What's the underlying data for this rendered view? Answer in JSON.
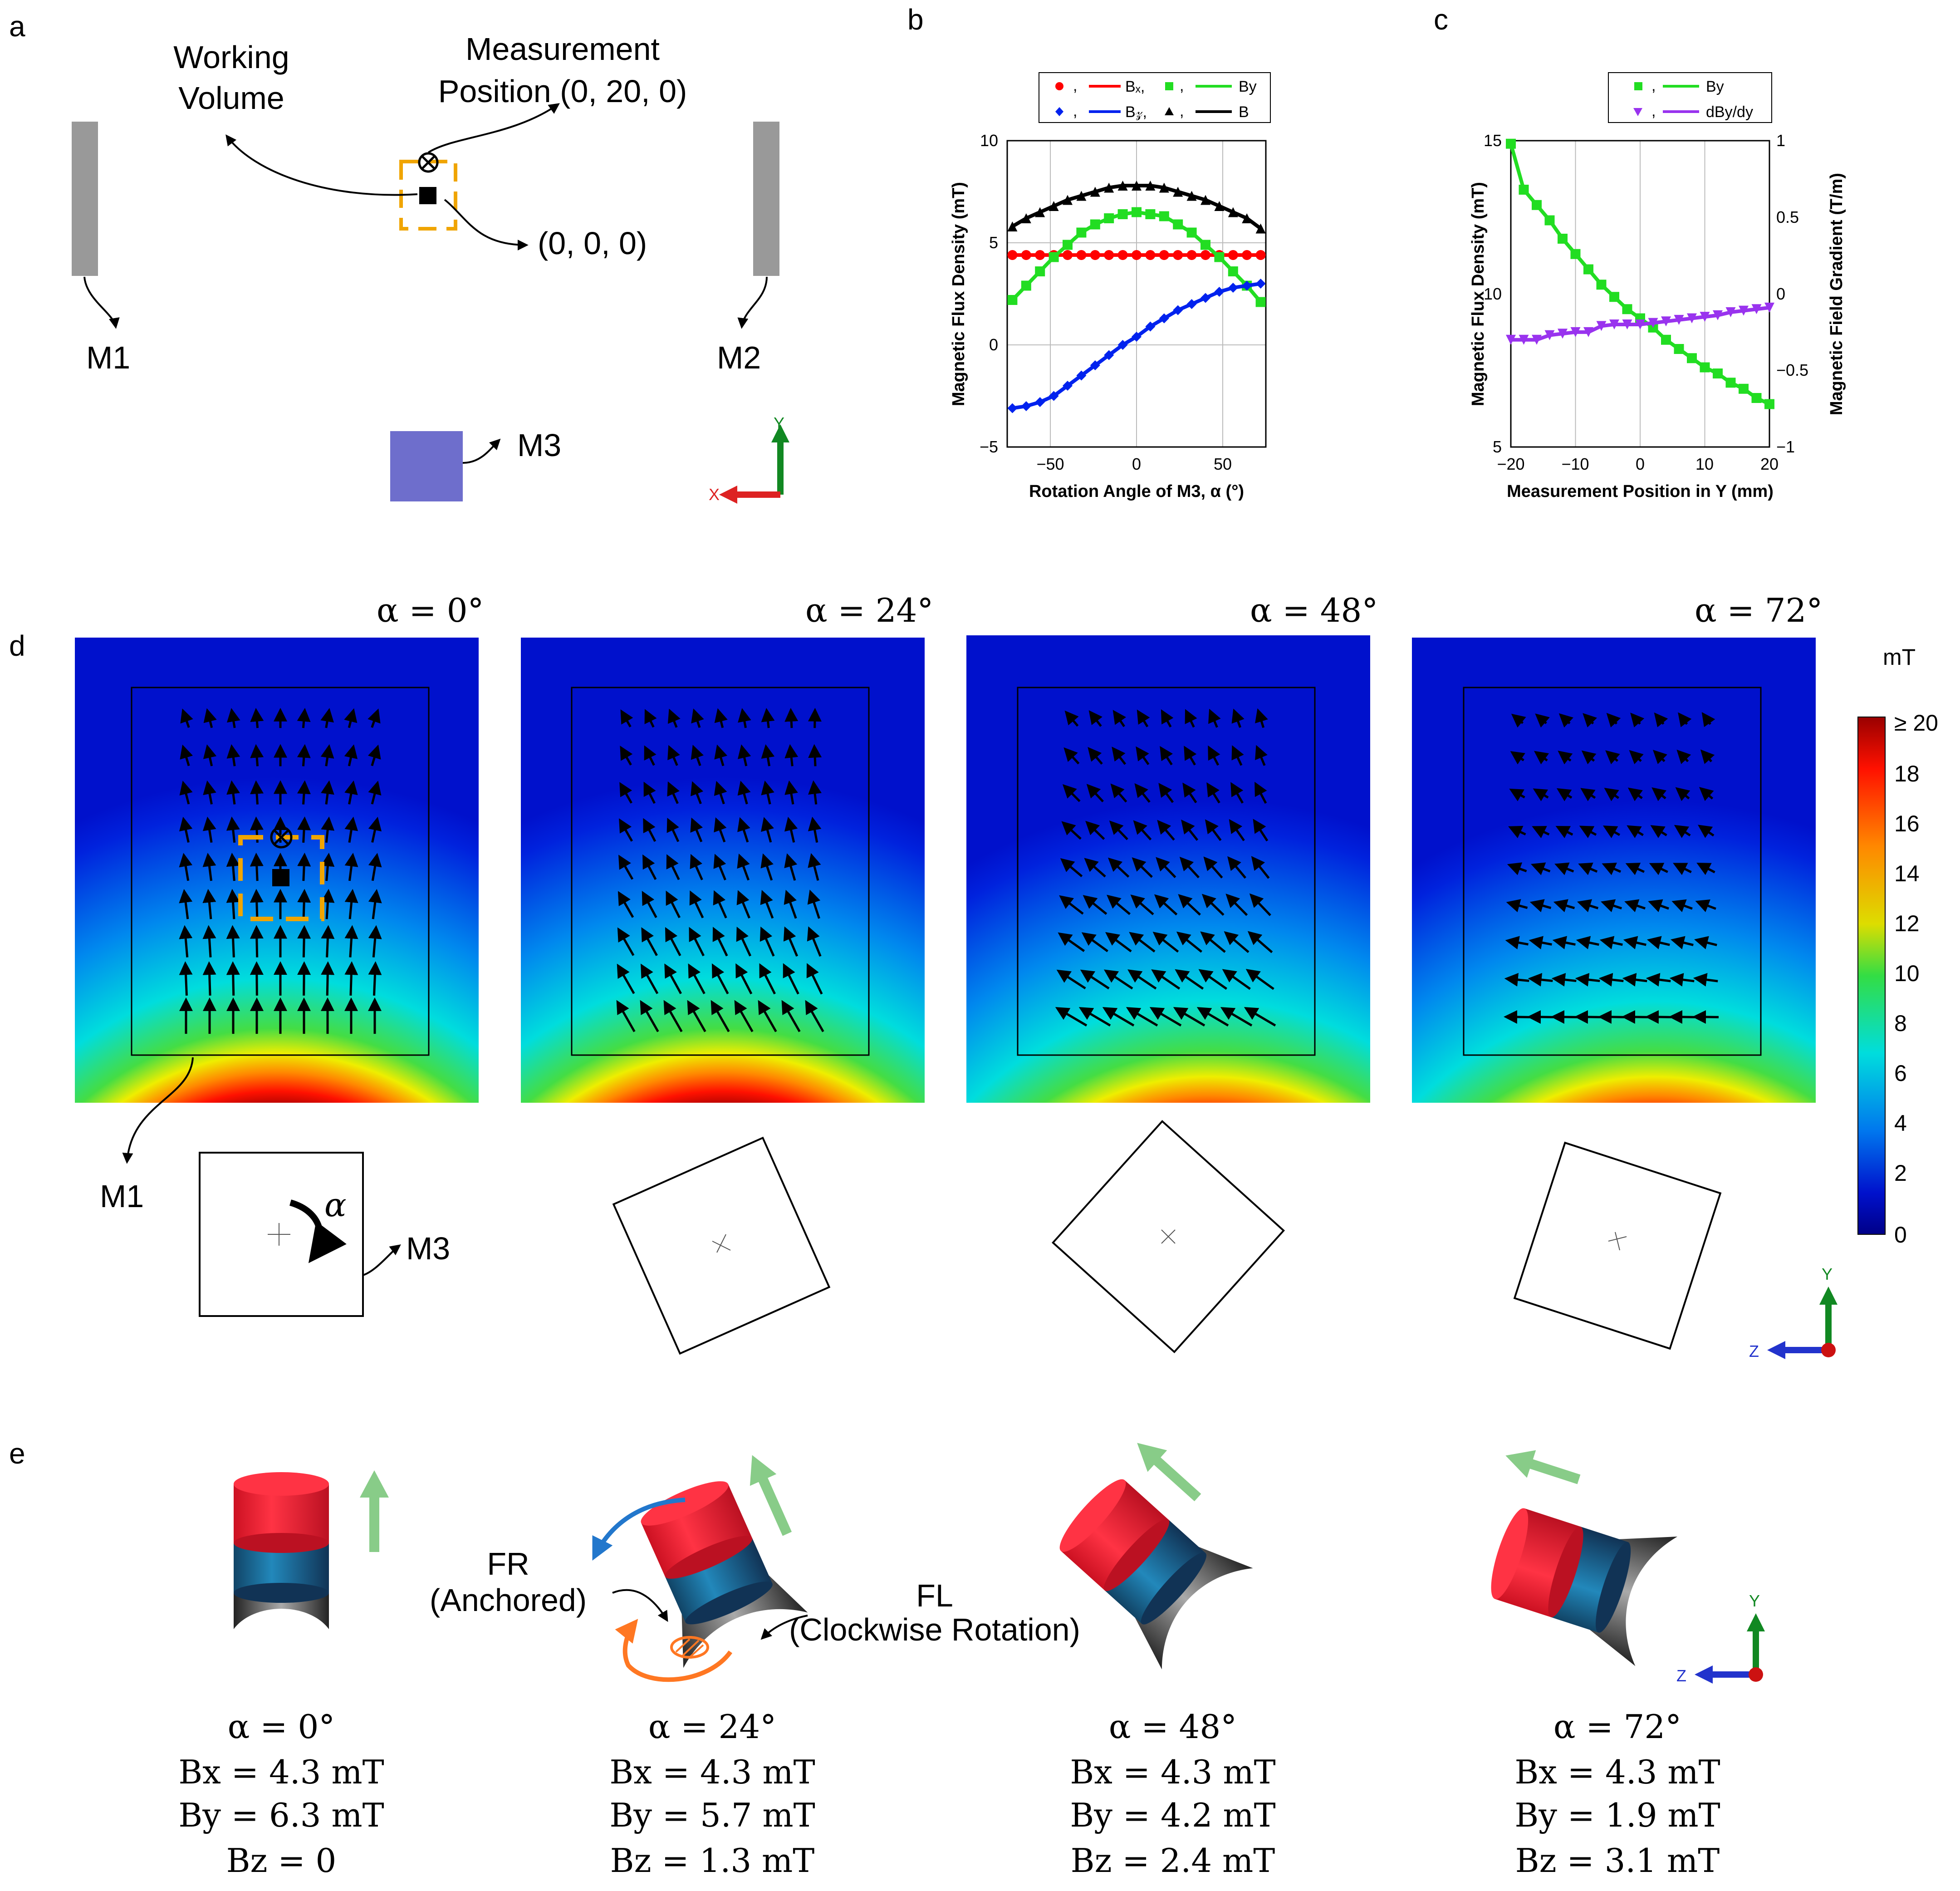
{
  "panel_labels": {
    "a": "a",
    "b": "b",
    "c": "c",
    "d": "d",
    "e": "e"
  },
  "panel_a": {
    "working_volume_line1": "Working",
    "working_volume_line2": "Volume",
    "measurement_line1": "Measurement",
    "measurement_line2": "Position (0, 20, 0)",
    "origin_label": "(0, 0, 0)",
    "m1": "M1",
    "m2": "M2",
    "m3": "M3",
    "axis_y": "Y",
    "axis_x": "X"
  },
  "panel_b": {
    "legend": {
      "bx": "Bₓ,",
      "by": "By",
      "bz": "B𝓏,",
      "b": "B",
      "comma": ","
    },
    "xlabel": "Rotation Angle of M3, α (°)",
    "ylabel": "Magnetic Flux Density (mT)",
    "xticks": [
      "−50",
      "0",
      "50"
    ],
    "yticks": [
      "10",
      "5",
      "0",
      "−5"
    ]
  },
  "panel_c": {
    "legend": {
      "by": "By",
      "grad": "dBy/dy",
      "comma": ","
    },
    "xlabel": "Measurement Position in Y (mm)",
    "ylabel_left": "Magnetic Flux Density (mT)",
    "ylabel_right": "Magnetic Field Gradient (T/m)",
    "xticks": [
      "−20",
      "−10",
      "0",
      "10",
      "20"
    ],
    "yticks_left": [
      "15",
      "10",
      "5"
    ],
    "yticks_right": [
      "1",
      "0.5",
      "0",
      "−0.5",
      "−1"
    ]
  },
  "panel_d": {
    "titles": [
      "α = 0°",
      "α = 24°",
      "α = 48°",
      "α = 72°"
    ],
    "m1": "M1",
    "m3": "M3",
    "alpha": "α",
    "colorbar_unit": "mT",
    "colorbar_ticks": [
      "≥ 20",
      "18",
      "16",
      "14",
      "12",
      "10",
      "8",
      "6",
      "4",
      "2",
      "0"
    ],
    "axis_y": "Y",
    "axis_z": "Z"
  },
  "panel_e": {
    "fr_line1": "FR",
    "fr_line2": "(Anchored)",
    "fl_line1": "FL",
    "fl_line2": "(Clockwise Rotation)",
    "axis_y": "Y",
    "axis_z": "Z",
    "captions": [
      {
        "alpha": "α = 0°",
        "bx": "Bx = 4.3 mT",
        "by": "By = 6.3 mT",
        "bz": "Bz = 0"
      },
      {
        "alpha": "α = 24°",
        "bx": "Bx = 4.3 mT",
        "by": "By = 5.7 mT",
        "bz": "Bz = 1.3 mT"
      },
      {
        "alpha": "α = 48°",
        "bx": "Bx = 4.3 mT",
        "by": "By = 4.2 mT",
        "bz": "Bz = 2.4 mT"
      },
      {
        "alpha": "α = 72°",
        "bx": "Bx = 4.3 mT",
        "by": "By = 1.9 mT",
        "bz": "Bz = 3.1 mT"
      }
    ]
  },
  "chart_data": [
    {
      "type": "line",
      "panel": "b",
      "xlabel": "Rotation Angle of M3, α (°)",
      "ylabel": "Magnetic Flux Density (mT)",
      "xlim": [
        -75,
        75
      ],
      "ylim": [
        -5,
        10
      ],
      "grid": true,
      "legend": "top",
      "series": [
        {
          "name": "Bx",
          "color": "#ff0000",
          "marker": "circle",
          "x": [
            -72,
            -64,
            -56,
            -48,
            -40,
            -32,
            -24,
            -16,
            -8,
            0,
            8,
            16,
            24,
            32,
            40,
            48,
            56,
            64,
            72
          ],
          "y": [
            4.4,
            4.4,
            4.4,
            4.4,
            4.4,
            4.4,
            4.4,
            4.4,
            4.4,
            4.4,
            4.4,
            4.4,
            4.4,
            4.4,
            4.4,
            4.4,
            4.4,
            4.4,
            4.4
          ]
        },
        {
          "name": "By",
          "color": "#22dd22",
          "marker": "square",
          "x": [
            -72,
            -64,
            -56,
            -48,
            -40,
            -32,
            -24,
            -16,
            -8,
            0,
            8,
            16,
            24,
            32,
            40,
            48,
            56,
            64,
            72
          ],
          "y": [
            2.2,
            2.9,
            3.6,
            4.3,
            4.9,
            5.5,
            5.9,
            6.2,
            6.4,
            6.5,
            6.4,
            6.3,
            5.9,
            5.5,
            4.9,
            4.3,
            3.6,
            2.9,
            2.1
          ]
        },
        {
          "name": "Bz",
          "color": "#0022ee",
          "marker": "diamond",
          "x": [
            -72,
            -64,
            -56,
            -48,
            -40,
            -32,
            -24,
            -16,
            -8,
            0,
            8,
            16,
            24,
            32,
            40,
            48,
            56,
            64,
            72
          ],
          "y": [
            -3.1,
            -3.0,
            -2.8,
            -2.5,
            -2.0,
            -1.5,
            -1.0,
            -0.5,
            0.0,
            0.4,
            0.9,
            1.3,
            1.7,
            2.0,
            2.3,
            2.6,
            2.8,
            2.9,
            3.0
          ]
        },
        {
          "name": "B",
          "color": "#000000",
          "marker": "triangle",
          "x": [
            -72,
            -64,
            -56,
            -48,
            -40,
            -32,
            -24,
            -16,
            -8,
            0,
            8,
            16,
            24,
            32,
            40,
            48,
            56,
            64,
            72
          ],
          "y": [
            5.8,
            6.2,
            6.5,
            6.8,
            7.1,
            7.3,
            7.5,
            7.7,
            7.8,
            7.8,
            7.8,
            7.7,
            7.5,
            7.3,
            7.1,
            6.8,
            6.5,
            6.2,
            5.7
          ]
        }
      ]
    },
    {
      "type": "line",
      "panel": "c",
      "xlabel": "Measurement Position in Y (mm)",
      "ylabel": "Magnetic Flux Density (mT)",
      "y2label": "Magnetic Field Gradient (T/m)",
      "xlim": [
        -20,
        20
      ],
      "ylim": [
        5,
        15
      ],
      "y2lim": [
        -1,
        1
      ],
      "grid": true,
      "legend": "top-right",
      "series": [
        {
          "name": "By",
          "color": "#22dd22",
          "marker": "square",
          "axis": "left",
          "x": [
            -20,
            -18,
            -16,
            -14,
            -12,
            -10,
            -8,
            -6,
            -4,
            -2,
            0,
            2,
            4,
            6,
            8,
            10,
            12,
            14,
            16,
            18,
            20
          ],
          "y": [
            14.9,
            13.4,
            12.9,
            12.4,
            11.8,
            11.3,
            10.8,
            10.3,
            9.9,
            9.5,
            9.2,
            8.9,
            8.5,
            8.2,
            7.9,
            7.6,
            7.4,
            7.1,
            6.9,
            6.6,
            6.4
          ]
        },
        {
          "name": "dBy/dy",
          "color": "#9933ee",
          "marker": "triangle-down",
          "axis": "right",
          "x": [
            -20,
            -18,
            -16,
            -14,
            -12,
            -10,
            -8,
            -6,
            -4,
            -2,
            0,
            2,
            4,
            6,
            8,
            10,
            12,
            14,
            16,
            18,
            20
          ],
          "y": [
            -0.3,
            -0.3,
            -0.3,
            -0.27,
            -0.26,
            -0.25,
            -0.25,
            -0.21,
            -0.2,
            -0.2,
            -0.2,
            -0.19,
            -0.18,
            -0.17,
            -0.16,
            -0.15,
            -0.14,
            -0.12,
            -0.11,
            -0.1,
            -0.09
          ]
        }
      ]
    }
  ]
}
